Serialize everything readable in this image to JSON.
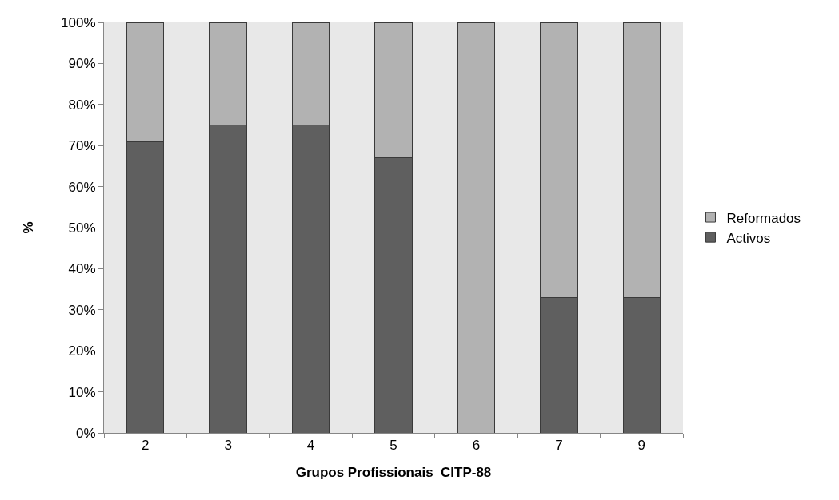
{
  "chart_data": {
    "type": "bar",
    "stacked": true,
    "xlabel": "Grupos Profissionais  CITP-88",
    "ylabel": "%",
    "categories": [
      "2",
      "3",
      "4",
      "5",
      "6",
      "7",
      "9"
    ],
    "series": [
      {
        "name": "Activos",
        "color": "#5f5f5f",
        "values": [
          71,
          75,
          75,
          67,
          0,
          33,
          33
        ]
      },
      {
        "name": "Reformados",
        "color": "#b2b2b2",
        "values": [
          29,
          25,
          25,
          33,
          100,
          67,
          67
        ]
      }
    ],
    "ylim": [
      0,
      100
    ],
    "yticks": [
      {
        "value": 0,
        "label": "0%"
      },
      {
        "value": 10,
        "label": "10%"
      },
      {
        "value": 20,
        "label": "20%"
      },
      {
        "value": 30,
        "label": "30%"
      },
      {
        "value": 40,
        "label": "40%"
      },
      {
        "value": 50,
        "label": "50%"
      },
      {
        "value": 60,
        "label": "60%"
      },
      {
        "value": 70,
        "label": "70%"
      },
      {
        "value": 80,
        "label": "80%"
      },
      {
        "value": 90,
        "label": "90%"
      },
      {
        "value": 100,
        "label": "100%"
      }
    ],
    "grid": false,
    "legend": "right"
  }
}
